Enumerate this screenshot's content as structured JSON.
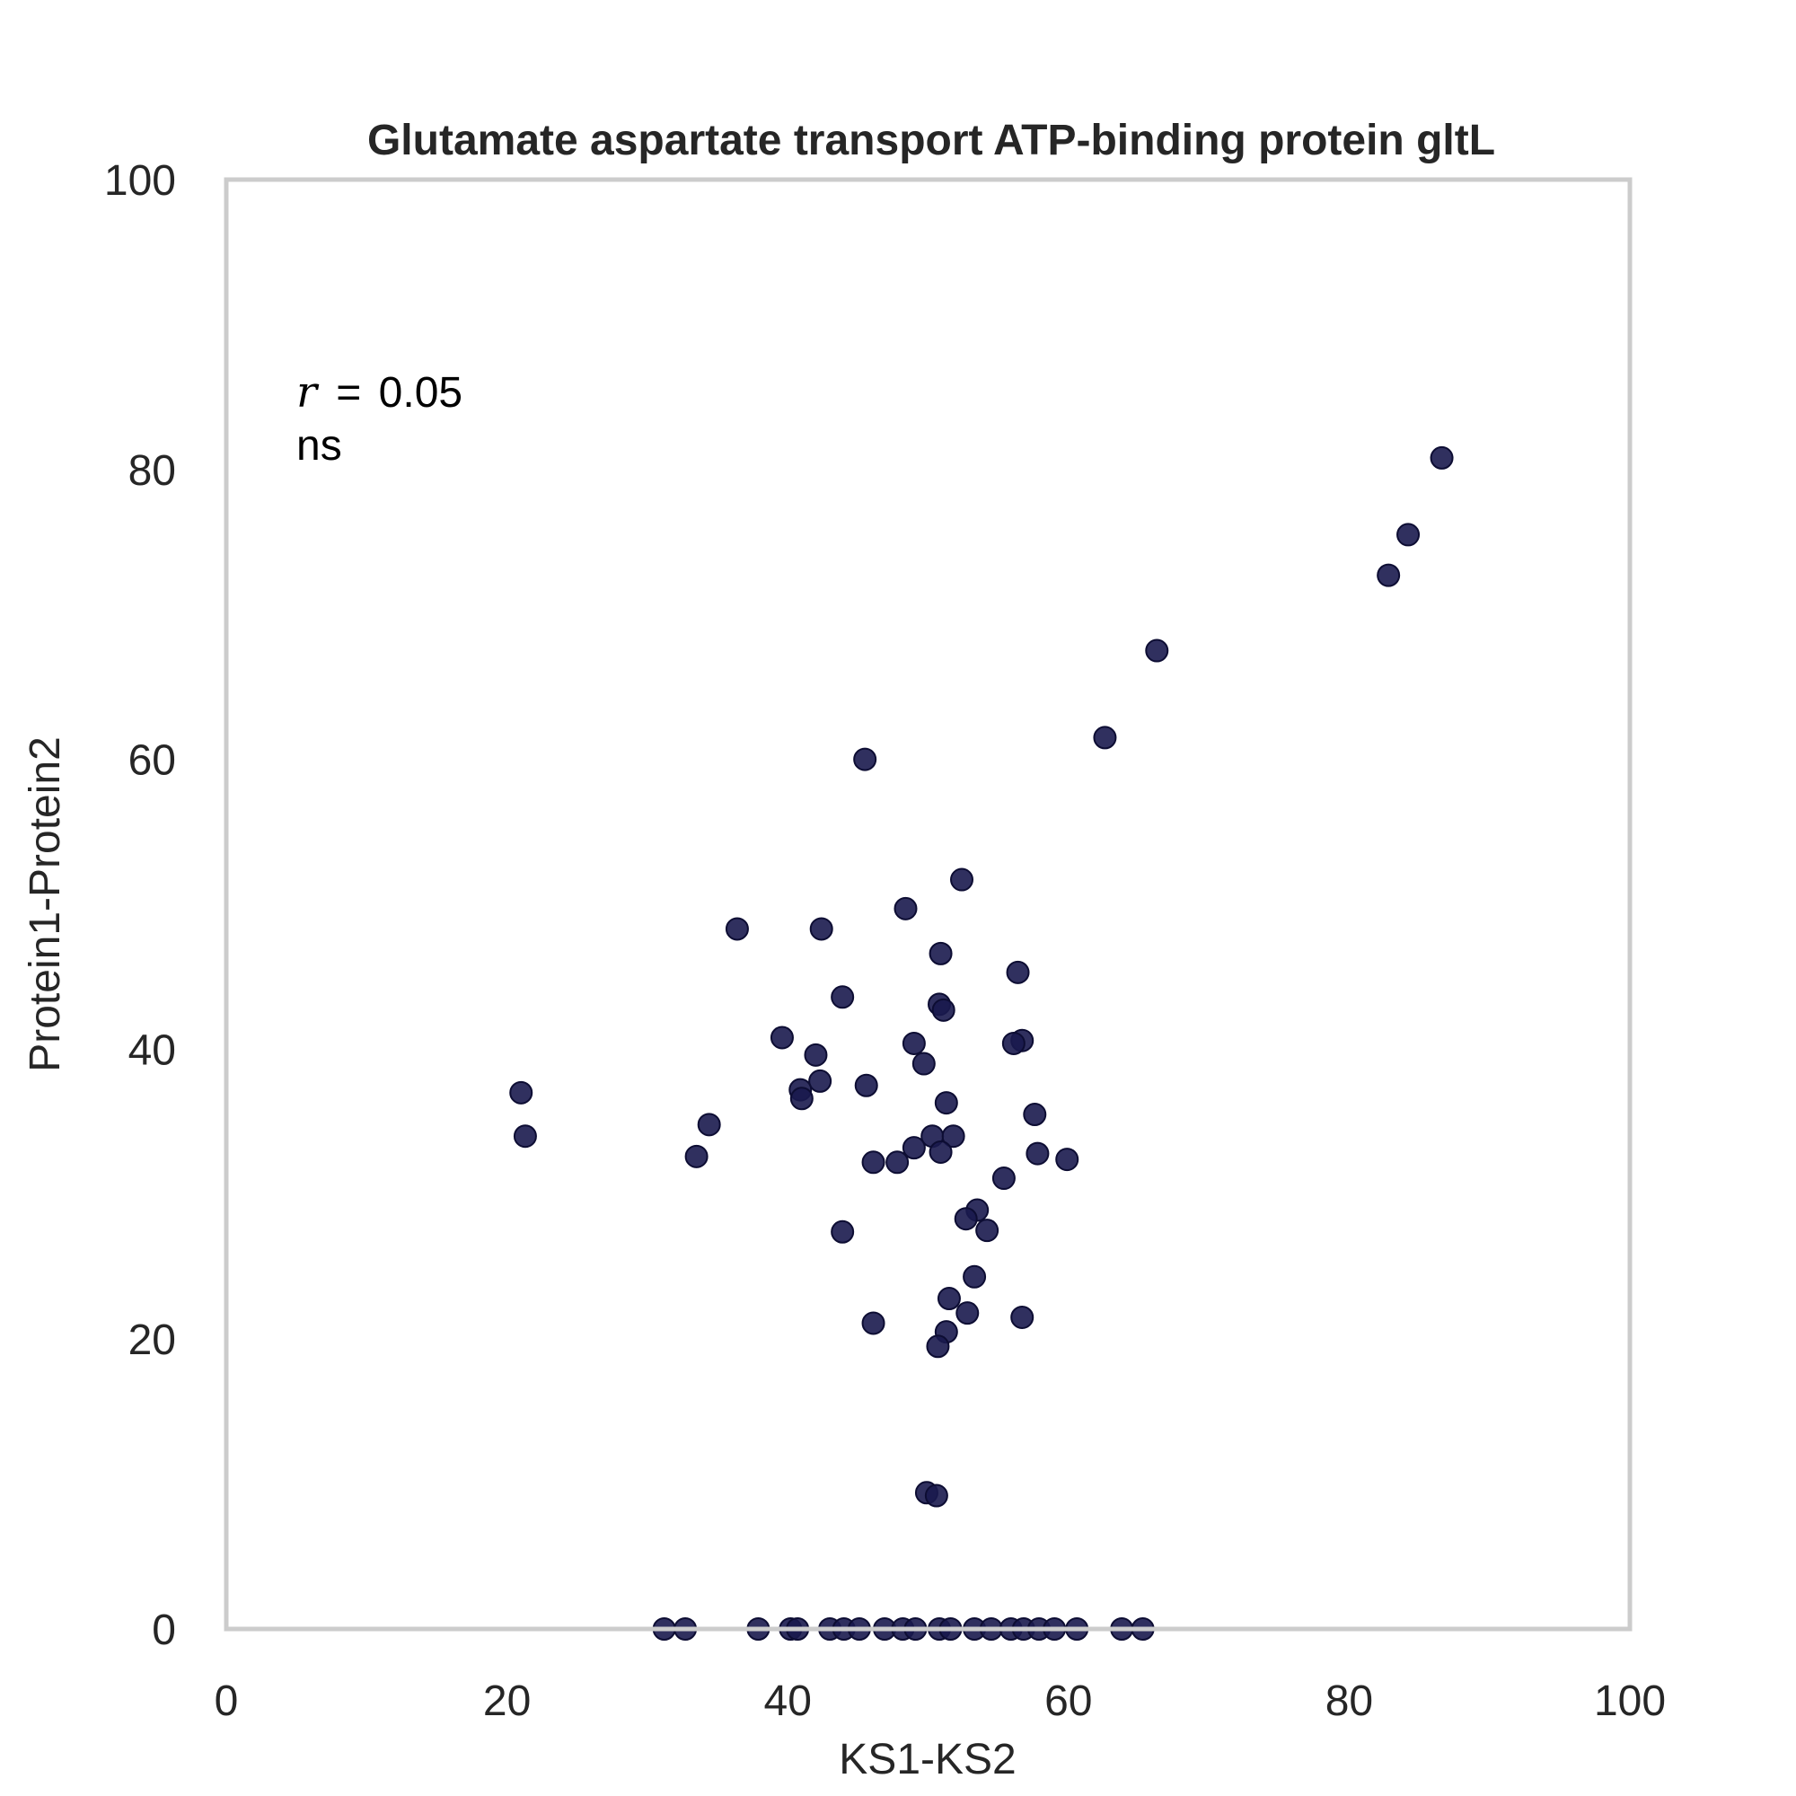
{
  "chart_data": {
    "type": "scatter",
    "title": "Glutamate aspartate transport ATP-binding protein gltL",
    "xlabel": "KS1-KS2",
    "ylabel": "Protein1-Protein2",
    "xlim": [
      0,
      100
    ],
    "ylim": [
      0,
      100
    ],
    "xticks": [
      "0",
      "20",
      "40",
      "60",
      "80",
      "100"
    ],
    "yticks": [
      "0",
      "20",
      "40",
      "60",
      "80",
      "100"
    ],
    "grid": false,
    "annotation": {
      "r_symbol": "r",
      "r_equals": "=",
      "r_value": "0.05",
      "significance": "ns"
    },
    "colors": {
      "point": "#1a1a4e",
      "frame": "#cccccc",
      "text": "#262626"
    },
    "points": [
      [
        86.6,
        80.8
      ],
      [
        84.2,
        75.5
      ],
      [
        82.8,
        72.7
      ],
      [
        66.3,
        67.5
      ],
      [
        62.6,
        61.5
      ],
      [
        45.5,
        60.0
      ],
      [
        52.4,
        51.7
      ],
      [
        48.4,
        49.7
      ],
      [
        36.4,
        48.3
      ],
      [
        42.4,
        48.3
      ],
      [
        50.9,
        46.6
      ],
      [
        56.4,
        45.3
      ],
      [
        43.9,
        43.6
      ],
      [
        50.8,
        43.1
      ],
      [
        51.1,
        42.7
      ],
      [
        39.6,
        40.8
      ],
      [
        56.7,
        40.6
      ],
      [
        56.1,
        40.4
      ],
      [
        49.0,
        40.4
      ],
      [
        42.0,
        39.6
      ],
      [
        49.7,
        39.0
      ],
      [
        42.3,
        37.8
      ],
      [
        45.6,
        37.5
      ],
      [
        40.9,
        37.2
      ],
      [
        41.0,
        36.6
      ],
      [
        21.0,
        37.0
      ],
      [
        51.3,
        36.3
      ],
      [
        57.6,
        35.5
      ],
      [
        34.4,
        34.8
      ],
      [
        21.3,
        34.0
      ],
      [
        50.3,
        34.0
      ],
      [
        51.8,
        34.0
      ],
      [
        49.0,
        33.2
      ],
      [
        50.9,
        32.9
      ],
      [
        57.8,
        32.8
      ],
      [
        33.5,
        32.6
      ],
      [
        59.9,
        32.4
      ],
      [
        46.1,
        32.2
      ],
      [
        47.8,
        32.2
      ],
      [
        55.4,
        31.1
      ],
      [
        53.5,
        28.9
      ],
      [
        52.7,
        28.3
      ],
      [
        54.2,
        27.5
      ],
      [
        43.9,
        27.4
      ],
      [
        53.3,
        24.3
      ],
      [
        51.5,
        22.8
      ],
      [
        52.8,
        21.8
      ],
      [
        56.7,
        21.5
      ],
      [
        46.1,
        21.1
      ],
      [
        51.3,
        20.5
      ],
      [
        50.7,
        19.5
      ],
      [
        49.9,
        9.4
      ],
      [
        50.6,
        9.2
      ],
      [
        31.2,
        0
      ],
      [
        32.7,
        0
      ],
      [
        37.9,
        0
      ],
      [
        40.2,
        0
      ],
      [
        40.7,
        0
      ],
      [
        43.0,
        0
      ],
      [
        44.0,
        0
      ],
      [
        45.1,
        0
      ],
      [
        46.9,
        0
      ],
      [
        48.2,
        0
      ],
      [
        49.1,
        0
      ],
      [
        50.8,
        0
      ],
      [
        51.6,
        0
      ],
      [
        53.3,
        0
      ],
      [
        54.5,
        0
      ],
      [
        55.9,
        0
      ],
      [
        56.8,
        0
      ],
      [
        57.9,
        0
      ],
      [
        59.0,
        0
      ],
      [
        60.6,
        0
      ],
      [
        63.8,
        0
      ],
      [
        65.3,
        0
      ]
    ]
  }
}
